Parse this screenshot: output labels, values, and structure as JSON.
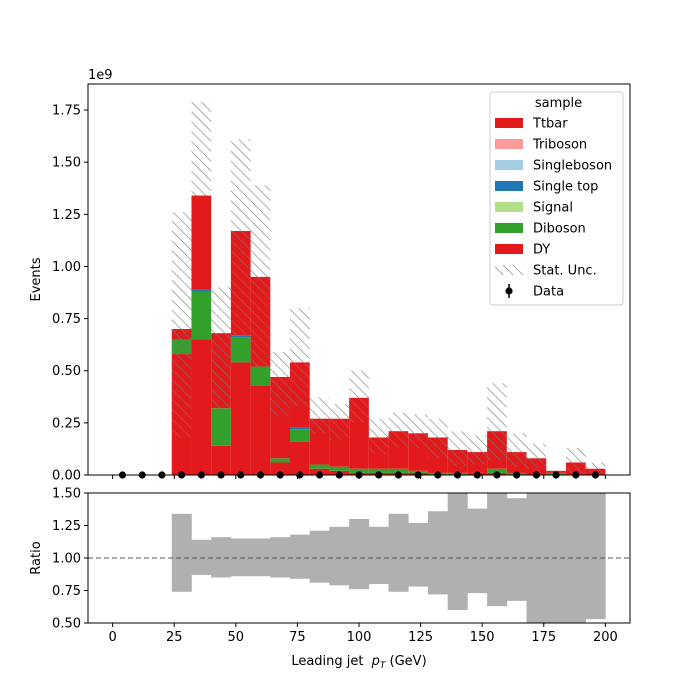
{
  "chart_data": {
    "type": "bar",
    "stacked": true,
    "histtype": "step-filled",
    "x_unit": "GeV",
    "xlabel": "Leading jet  p_T (GeV)",
    "xlabel_plain": "Leading jet ",
    "xlabel_var_main": "p",
    "xlabel_var_sub": "T",
    "xlabel_unit": " (GeV)",
    "top_panel": {
      "ylabel": "Events",
      "y_multiplier_label": "1e9",
      "ylim": [
        0,
        1.875
      ],
      "xlim": [
        -10,
        210
      ],
      "xticks": [
        0,
        25,
        50,
        75,
        100,
        125,
        150,
        175,
        200
      ],
      "yticks": [
        "0.00",
        "0.25",
        "0.50",
        "0.75",
        "1.00",
        "1.25",
        "1.50",
        "1.75"
      ],
      "bin_edges": [
        24,
        32,
        40,
        48,
        56,
        64,
        72,
        80,
        88,
        96,
        104,
        112,
        120,
        128,
        136,
        144,
        152,
        160,
        168,
        176,
        184,
        192,
        200
      ],
      "series": [
        {
          "name": "DY",
          "color": "#e31a1c",
          "values": [
            0.58,
            0.65,
            0.14,
            0.54,
            0.43,
            0.06,
            0.16,
            0.03,
            0.02,
            0.01,
            0.01,
            0.01,
            0.01,
            0.0,
            0.0,
            0.01,
            0.01,
            0.0,
            0.0,
            0.0,
            0.0,
            0.0
          ]
        },
        {
          "name": "Diboson",
          "color": "#33a02c",
          "values": [
            0.07,
            0.23,
            0.18,
            0.12,
            0.09,
            0.02,
            0.06,
            0.02,
            0.02,
            0.02,
            0.02,
            0.02,
            0.01,
            0.01,
            0.01,
            0.0,
            0.02,
            0.01,
            0.0,
            0.01,
            0.0,
            0.0
          ]
        },
        {
          "name": "Signal",
          "color": "#b2df8a",
          "values": [
            0.0,
            0.0,
            0.0,
            0.0,
            0.0,
            0.0,
            0.0,
            0.0,
            0.0,
            0.0,
            0.0,
            0.0,
            0.0,
            0.0,
            0.0,
            0.0,
            0.0,
            0.0,
            0.0,
            0.0,
            0.0,
            0.0
          ]
        },
        {
          "name": "Single top",
          "color": "#1f78b4",
          "values": [
            0.0,
            0.01,
            0.0,
            0.01,
            0.0,
            0.0,
            0.01,
            0.0,
            0.0,
            0.0,
            0.0,
            0.0,
            0.0,
            0.0,
            0.0,
            0.0,
            0.0,
            0.0,
            0.0,
            0.0,
            0.0,
            0.0
          ]
        },
        {
          "name": "Singleboson",
          "color": "#a6cee3",
          "values": [
            0.0,
            0.0,
            0.0,
            0.0,
            0.0,
            0.0,
            0.0,
            0.0,
            0.0,
            0.0,
            0.0,
            0.0,
            0.0,
            0.0,
            0.0,
            0.0,
            0.0,
            0.0,
            0.0,
            0.0,
            0.0,
            0.0
          ]
        },
        {
          "name": "Triboson",
          "color": "#fb9a99",
          "values": [
            0.0,
            0.0,
            0.0,
            0.0,
            0.0,
            0.0,
            0.0,
            0.0,
            0.0,
            0.0,
            0.0,
            0.0,
            0.0,
            0.0,
            0.0,
            0.0,
            0.0,
            0.0,
            0.0,
            0.0,
            0.0,
            0.0
          ]
        },
        {
          "name": "Ttbar",
          "color": "#e31a1c",
          "values": [
            0.05,
            0.45,
            0.36,
            0.5,
            0.43,
            0.39,
            0.31,
            0.22,
            0.23,
            0.34,
            0.15,
            0.18,
            0.18,
            0.17,
            0.11,
            0.1,
            0.18,
            0.1,
            0.08,
            0.01,
            0.06,
            0.03
          ]
        }
      ],
      "stat_unc": {
        "name": "Stat. Unc.",
        "up": [
          1.26,
          1.79,
          0.9,
          1.61,
          1.39,
          0.59,
          0.8,
          0.37,
          0.34,
          0.5,
          0.27,
          0.3,
          0.29,
          0.27,
          0.21,
          0.19,
          0.44,
          0.2,
          0.15,
          0.02,
          0.13,
          0.06
        ],
        "down": [
          0.18,
          1.34,
          0.32,
          0.67,
          0.52,
          0.28,
          0.33,
          0.2,
          0.17,
          0.25,
          0.1,
          0.13,
          0.13,
          0.08,
          0.04,
          0.05,
          0.07,
          0.04,
          0.03,
          0.0,
          0.0,
          0.0
        ]
      },
      "data": {
        "name": "Data",
        "x": [
          4,
          12,
          20,
          28,
          36,
          44,
          52,
          60,
          68,
          76,
          84,
          92,
          100,
          108,
          116,
          124,
          132,
          140,
          148,
          156,
          164,
          172,
          180,
          188,
          196
        ],
        "y": [
          0,
          0,
          0,
          0,
          0,
          0,
          0,
          0,
          0,
          0,
          0,
          0,
          0,
          0,
          0,
          0,
          0,
          0,
          0,
          0,
          0,
          0,
          0,
          0,
          0
        ]
      },
      "legend": {
        "title": "sample",
        "location": "upper right",
        "entries": [
          "Ttbar",
          "Triboson",
          "Singleboson",
          "Single top",
          "Signal",
          "Diboson",
          "DY",
          "Stat. Unc.",
          "Data"
        ]
      }
    },
    "ratio_panel": {
      "ylabel": "Ratio",
      "ylim": [
        0.5,
        1.5
      ],
      "yticks": [
        "0.50",
        "0.75",
        "1.00",
        "1.25",
        "1.50"
      ],
      "reference_line": 1.0,
      "unc_band": {
        "up": [
          1.34,
          1.14,
          1.16,
          1.15,
          1.15,
          1.16,
          1.18,
          1.21,
          1.24,
          1.3,
          1.24,
          1.34,
          1.27,
          1.36,
          1.5,
          1.38,
          1.5,
          1.46,
          1.5,
          1.5,
          1.5,
          1.5
        ],
        "down": [
          0.74,
          0.87,
          0.85,
          0.86,
          0.86,
          0.85,
          0.84,
          0.81,
          0.79,
          0.76,
          0.8,
          0.74,
          0.78,
          0.72,
          0.6,
          0.73,
          0.63,
          0.67,
          0.5,
          0.5,
          0.5,
          0.53
        ]
      }
    }
  }
}
